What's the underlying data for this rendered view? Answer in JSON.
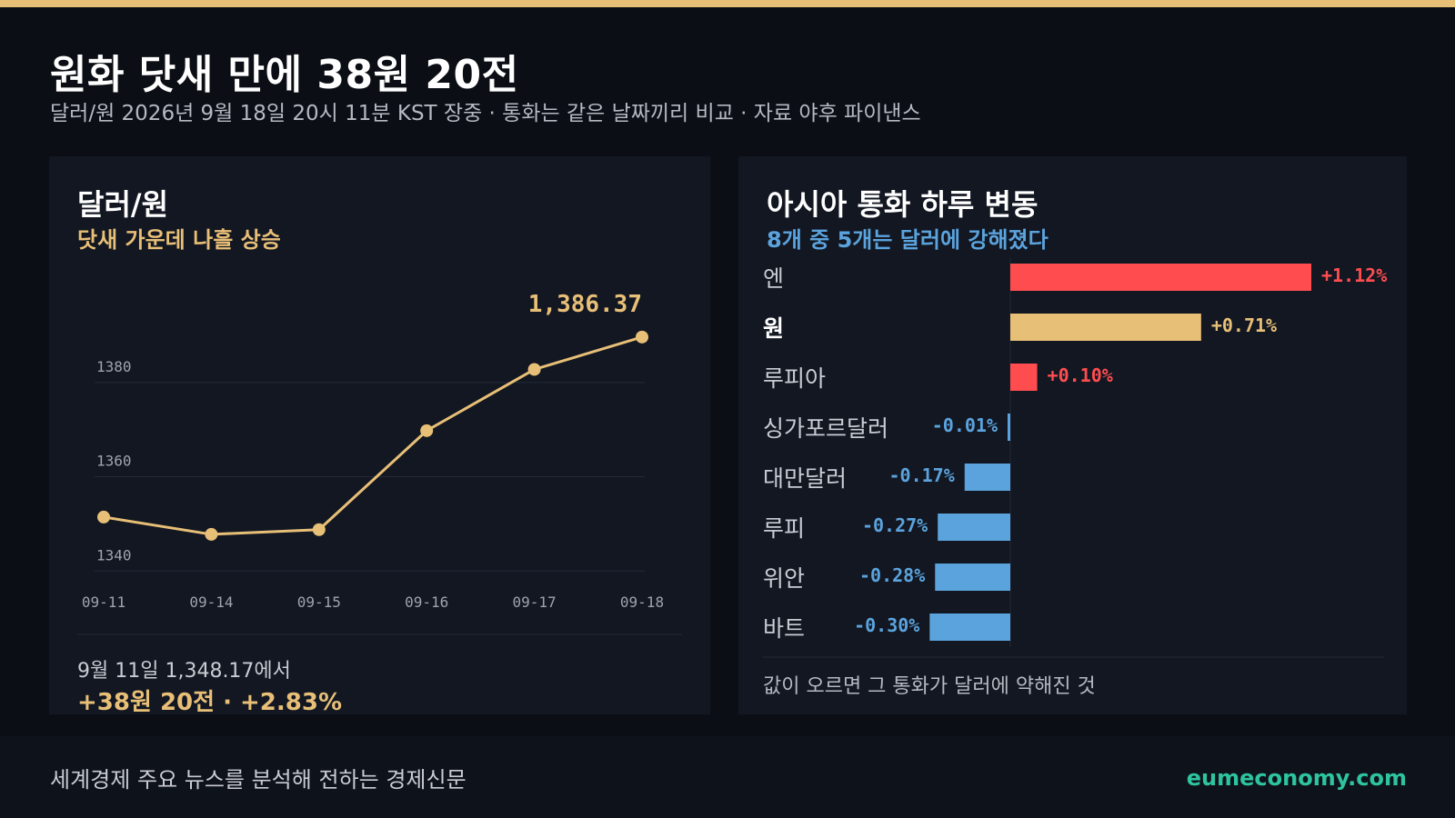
{
  "page": {
    "title": "원화 닷새 만에 38원 20전",
    "subtitle": "달러/원 2026년 9월 18일 20시 11분 KST 장중 · 통화는 같은 날짜끼리 비교 · 자료 야후 파이낸스",
    "footer_tagline": "세계경제 주요 뉴스를 분석해 전하는 경제신문",
    "footer_site": "eumeconomy.com"
  },
  "colors": {
    "accent": "#e8bf77",
    "positive": "#ff4d4f",
    "negative": "#5ba3dd",
    "site": "#2ec4a0"
  },
  "left_card": {
    "title": "달러/원",
    "subtitle": "닷새 가운데 나흘 상승",
    "footer_line1": "9월 11일 1,348.17에서",
    "footer_line2": "+38원 20전 · +2.83%"
  },
  "right_card": {
    "title": "아시아 통화 하루 변동",
    "subtitle": "8개 중 5개는 달러에 강해졌다",
    "footer_note": "값이 오르면 그 통화가 달러에 약해진 것"
  },
  "chart_data": [
    {
      "type": "line",
      "x": [
        "09-11",
        "09-14",
        "09-15",
        "09-16",
        "09-17",
        "09-18"
      ],
      "values": [
        1348.17,
        1344.5,
        1345.5,
        1366.5,
        1379.5,
        1386.37
      ],
      "yticks": [
        1340,
        1360,
        1380
      ],
      "ylim": [
        1336,
        1390
      ],
      "last_label": "1,386.37",
      "grid": true
    },
    {
      "type": "bar",
      "orientation": "horizontal",
      "categories": [
        "엔",
        "원",
        "루피아",
        "싱가포르달러",
        "대만달러",
        "루피",
        "위안",
        "바트"
      ],
      "values": [
        1.12,
        0.71,
        0.1,
        -0.01,
        -0.17,
        -0.27,
        -0.28,
        -0.3
      ],
      "labels": [
        "+1.12%",
        "+0.71%",
        "+0.10%",
        "-0.01%",
        "-0.17%",
        "-0.27%",
        "-0.28%",
        "-0.30%"
      ],
      "highlight": "원"
    }
  ]
}
